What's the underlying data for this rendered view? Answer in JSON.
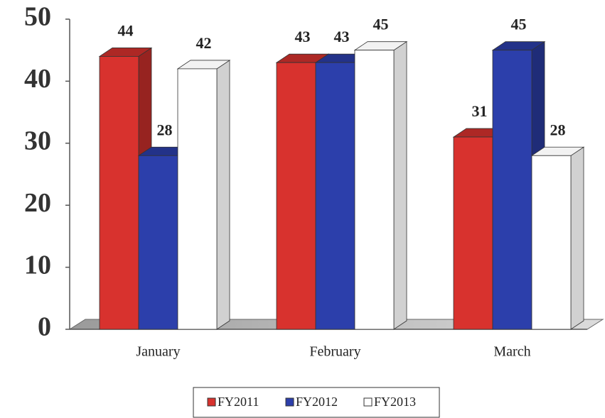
{
  "chart_data": {
    "type": "bar3d",
    "categories": [
      "January",
      "February",
      "March"
    ],
    "series": [
      {
        "name": "FY2011",
        "color": "#d8322e",
        "values": [
          44,
          43,
          31
        ]
      },
      {
        "name": "FY2012",
        "color": "#2c3fab",
        "values": [
          28,
          43,
          45
        ]
      },
      {
        "name": "FY2013",
        "color": "#ffffff",
        "values": [
          42,
          45,
          28
        ]
      }
    ],
    "ylim": [
      0,
      50
    ],
    "yticks": [
      0,
      10,
      20,
      30,
      40,
      50
    ],
    "legend": "bottom"
  }
}
